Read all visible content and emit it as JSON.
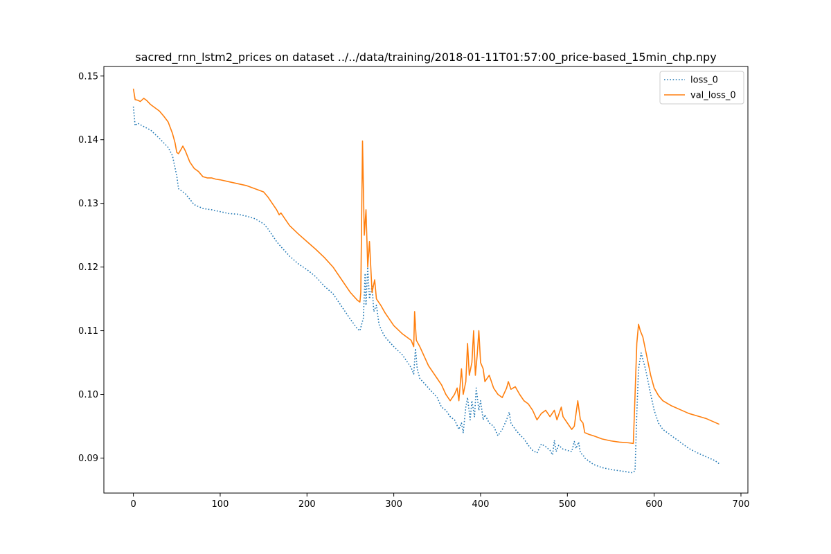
{
  "chart_data": {
    "type": "line",
    "title": "sacred_rnn_lstm2_prices on dataset ../../data/training/2018-01-11T01:57:00_price-based_15min_chp.npy",
    "xlabel": "",
    "ylabel": "",
    "xlim": [
      -34,
      708
    ],
    "ylim": [
      0.0845,
      0.1515
    ],
    "x_ticks": [
      0,
      100,
      200,
      300,
      400,
      500,
      600,
      700
    ],
    "y_ticks": [
      0.09,
      0.1,
      0.11,
      0.12,
      0.13,
      0.14,
      0.15
    ],
    "y_tick_labels": [
      "0.09",
      "0.10",
      "0.11",
      "0.12",
      "0.13",
      "0.14",
      "0.15"
    ],
    "grid": false,
    "legend_position": "top-right",
    "series": [
      {
        "name": "loss_0",
        "color": "#1f77b4",
        "style": "dotted",
        "points": [
          [
            0,
            0.1452
          ],
          [
            2,
            0.1422
          ],
          [
            5,
            0.1426
          ],
          [
            10,
            0.1422
          ],
          [
            20,
            0.1415
          ],
          [
            30,
            0.1402
          ],
          [
            40,
            0.1388
          ],
          [
            45,
            0.1375
          ],
          [
            50,
            0.1343
          ],
          [
            52,
            0.1323
          ],
          [
            55,
            0.132
          ],
          [
            60,
            0.1315
          ],
          [
            70,
            0.1298
          ],
          [
            80,
            0.1292
          ],
          [
            90,
            0.129
          ],
          [
            100,
            0.1287
          ],
          [
            110,
            0.1284
          ],
          [
            120,
            0.1283
          ],
          [
            130,
            0.128
          ],
          [
            140,
            0.1276
          ],
          [
            150,
            0.1268
          ],
          [
            155,
            0.126
          ],
          [
            160,
            0.125
          ],
          [
            165,
            0.124
          ],
          [
            170,
            0.1232
          ],
          [
            180,
            0.1217
          ],
          [
            190,
            0.1205
          ],
          [
            200,
            0.1196
          ],
          [
            210,
            0.1185
          ],
          [
            220,
            0.117
          ],
          [
            230,
            0.1158
          ],
          [
            240,
            0.1138
          ],
          [
            250,
            0.1118
          ],
          [
            258,
            0.1103
          ],
          [
            261,
            0.11
          ],
          [
            263,
            0.111
          ],
          [
            265,
            0.112
          ],
          [
            267,
            0.119
          ],
          [
            268,
            0.114
          ],
          [
            270,
            0.12
          ],
          [
            272,
            0.115
          ],
          [
            275,
            0.117
          ],
          [
            277,
            0.113
          ],
          [
            280,
            0.114
          ],
          [
            283,
            0.111
          ],
          [
            286,
            0.11
          ],
          [
            290,
            0.109
          ],
          [
            300,
            0.1075
          ],
          [
            310,
            0.1062
          ],
          [
            320,
            0.1042
          ],
          [
            323,
            0.1032
          ],
          [
            325,
            0.1072
          ],
          [
            327,
            0.104
          ],
          [
            330,
            0.1025
          ],
          [
            340,
            0.101
          ],
          [
            350,
            0.0995
          ],
          [
            355,
            0.098
          ],
          [
            360,
            0.0975
          ],
          [
            365,
            0.0965
          ],
          [
            370,
            0.096
          ],
          [
            375,
            0.0945
          ],
          [
            378,
            0.0955
          ],
          [
            380,
            0.094
          ],
          [
            383,
            0.098
          ],
          [
            385,
            0.0995
          ],
          [
            388,
            0.096
          ],
          [
            390,
            0.099
          ],
          [
            393,
            0.0965
          ],
          [
            395,
            0.101
          ],
          [
            398,
            0.0975
          ],
          [
            400,
            0.099
          ],
          [
            403,
            0.096
          ],
          [
            405,
            0.0968
          ],
          [
            410,
            0.0955
          ],
          [
            415,
            0.095
          ],
          [
            420,
            0.0935
          ],
          [
            425,
            0.0945
          ],
          [
            430,
            0.096
          ],
          [
            433,
            0.0972
          ],
          [
            435,
            0.0955
          ],
          [
            440,
            0.0945
          ],
          [
            445,
            0.0937
          ],
          [
            450,
            0.093
          ],
          [
            455,
            0.092
          ],
          [
            460,
            0.0912
          ],
          [
            465,
            0.0908
          ],
          [
            470,
            0.0922
          ],
          [
            475,
            0.0918
          ],
          [
            480,
            0.0912
          ],
          [
            483,
            0.0905
          ],
          [
            485,
            0.0928
          ],
          [
            487,
            0.091
          ],
          [
            490,
            0.092
          ],
          [
            495,
            0.0914
          ],
          [
            500,
            0.0912
          ],
          [
            505,
            0.091
          ],
          [
            508,
            0.0926
          ],
          [
            510,
            0.0915
          ],
          [
            513,
            0.0925
          ],
          [
            515,
            0.0908
          ],
          [
            518,
            0.0905
          ],
          [
            520,
            0.09
          ],
          [
            530,
            0.089
          ],
          [
            540,
            0.0885
          ],
          [
            550,
            0.0882
          ],
          [
            560,
            0.088
          ],
          [
            570,
            0.0878
          ],
          [
            575,
            0.0877
          ],
          [
            578,
            0.088
          ],
          [
            580,
            0.097
          ],
          [
            582,
            0.104
          ],
          [
            585,
            0.1065
          ],
          [
            588,
            0.105
          ],
          [
            590,
            0.104
          ],
          [
            593,
            0.102
          ],
          [
            596,
            0.1
          ],
          [
            600,
            0.0975
          ],
          [
            605,
            0.0955
          ],
          [
            610,
            0.0945
          ],
          [
            620,
            0.0935
          ],
          [
            630,
            0.0925
          ],
          [
            640,
            0.0915
          ],
          [
            650,
            0.0908
          ],
          [
            660,
            0.0902
          ],
          [
            670,
            0.0896
          ],
          [
            675,
            0.0891
          ]
        ]
      },
      {
        "name": "val_loss_0",
        "color": "#ff7f0e",
        "style": "solid",
        "points": [
          [
            0,
            0.148
          ],
          [
            2,
            0.1463
          ],
          [
            5,
            0.1462
          ],
          [
            8,
            0.146
          ],
          [
            12,
            0.1465
          ],
          [
            15,
            0.1462
          ],
          [
            20,
            0.1455
          ],
          [
            25,
            0.145
          ],
          [
            30,
            0.1445
          ],
          [
            35,
            0.1437
          ],
          [
            40,
            0.1428
          ],
          [
            45,
            0.141
          ],
          [
            48,
            0.1395
          ],
          [
            50,
            0.138
          ],
          [
            52,
            0.1378
          ],
          [
            55,
            0.1385
          ],
          [
            57,
            0.139
          ],
          [
            60,
            0.1382
          ],
          [
            65,
            0.1365
          ],
          [
            70,
            0.1355
          ],
          [
            75,
            0.135
          ],
          [
            80,
            0.1342
          ],
          [
            85,
            0.134
          ],
          [
            90,
            0.134
          ],
          [
            95,
            0.1338
          ],
          [
            100,
            0.1337
          ],
          [
            110,
            0.1334
          ],
          [
            120,
            0.1331
          ],
          [
            130,
            0.1328
          ],
          [
            140,
            0.1323
          ],
          [
            150,
            0.1318
          ],
          [
            155,
            0.131
          ],
          [
            160,
            0.13
          ],
          [
            165,
            0.129
          ],
          [
            168,
            0.1282
          ],
          [
            170,
            0.1285
          ],
          [
            175,
            0.1275
          ],
          [
            180,
            0.1265
          ],
          [
            190,
            0.1252
          ],
          [
            200,
            0.124
          ],
          [
            210,
            0.1228
          ],
          [
            220,
            0.1215
          ],
          [
            230,
            0.12
          ],
          [
            240,
            0.118
          ],
          [
            250,
            0.116
          ],
          [
            258,
            0.1148
          ],
          [
            261,
            0.1145
          ],
          [
            262,
            0.116
          ],
          [
            264,
            0.1398
          ],
          [
            266,
            0.125
          ],
          [
            268,
            0.129
          ],
          [
            270,
            0.12
          ],
          [
            272,
            0.124
          ],
          [
            275,
            0.116
          ],
          [
            278,
            0.118
          ],
          [
            280,
            0.115
          ],
          [
            285,
            0.114
          ],
          [
            290,
            0.1128
          ],
          [
            300,
            0.1108
          ],
          [
            310,
            0.1095
          ],
          [
            320,
            0.1085
          ],
          [
            323,
            0.1075
          ],
          [
            324,
            0.113
          ],
          [
            326,
            0.1085
          ],
          [
            330,
            0.1075
          ],
          [
            335,
            0.106
          ],
          [
            340,
            0.1045
          ],
          [
            345,
            0.1035
          ],
          [
            350,
            0.1025
          ],
          [
            355,
            0.1015
          ],
          [
            360,
            0.1
          ],
          [
            365,
            0.099
          ],
          [
            370,
            0.1
          ],
          [
            373,
            0.101
          ],
          [
            375,
            0.099
          ],
          [
            378,
            0.104
          ],
          [
            380,
            0.1
          ],
          [
            383,
            0.102
          ],
          [
            385,
            0.108
          ],
          [
            387,
            0.103
          ],
          [
            390,
            0.105
          ],
          [
            392,
            0.11
          ],
          [
            394,
            0.103
          ],
          [
            396,
            0.106
          ],
          [
            398,
            0.11
          ],
          [
            400,
            0.105
          ],
          [
            403,
            0.104
          ],
          [
            405,
            0.102
          ],
          [
            410,
            0.103
          ],
          [
            415,
            0.101
          ],
          [
            420,
            0.1
          ],
          [
            425,
            0.0995
          ],
          [
            430,
            0.101
          ],
          [
            432,
            0.102
          ],
          [
            435,
            0.1008
          ],
          [
            440,
            0.1012
          ],
          [
            445,
            0.1
          ],
          [
            450,
            0.099
          ],
          [
            455,
            0.0985
          ],
          [
            460,
            0.0975
          ],
          [
            465,
            0.096
          ],
          [
            470,
            0.097
          ],
          [
            475,
            0.0975
          ],
          [
            480,
            0.0965
          ],
          [
            485,
            0.0975
          ],
          [
            488,
            0.096
          ],
          [
            490,
            0.0968
          ],
          [
            493,
            0.098
          ],
          [
            495,
            0.0965
          ],
          [
            500,
            0.0955
          ],
          [
            505,
            0.0945
          ],
          [
            508,
            0.095
          ],
          [
            510,
            0.097
          ],
          [
            512,
            0.099
          ],
          [
            515,
            0.096
          ],
          [
            518,
            0.0955
          ],
          [
            520,
            0.094
          ],
          [
            525,
            0.0937
          ],
          [
            530,
            0.0935
          ],
          [
            540,
            0.093
          ],
          [
            550,
            0.0927
          ],
          [
            560,
            0.0925
          ],
          [
            570,
            0.0924
          ],
          [
            576,
            0.0923
          ],
          [
            578,
            0.1
          ],
          [
            580,
            0.108
          ],
          [
            582,
            0.111
          ],
          [
            584,
            0.11
          ],
          [
            587,
            0.109
          ],
          [
            590,
            0.107
          ],
          [
            593,
            0.105
          ],
          [
            596,
            0.103
          ],
          [
            600,
            0.101
          ],
          [
            605,
            0.0998
          ],
          [
            610,
            0.099
          ],
          [
            620,
            0.0982
          ],
          [
            630,
            0.0976
          ],
          [
            640,
            0.097
          ],
          [
            650,
            0.0966
          ],
          [
            660,
            0.0962
          ],
          [
            670,
            0.0956
          ],
          [
            675,
            0.0953
          ]
        ]
      }
    ]
  }
}
